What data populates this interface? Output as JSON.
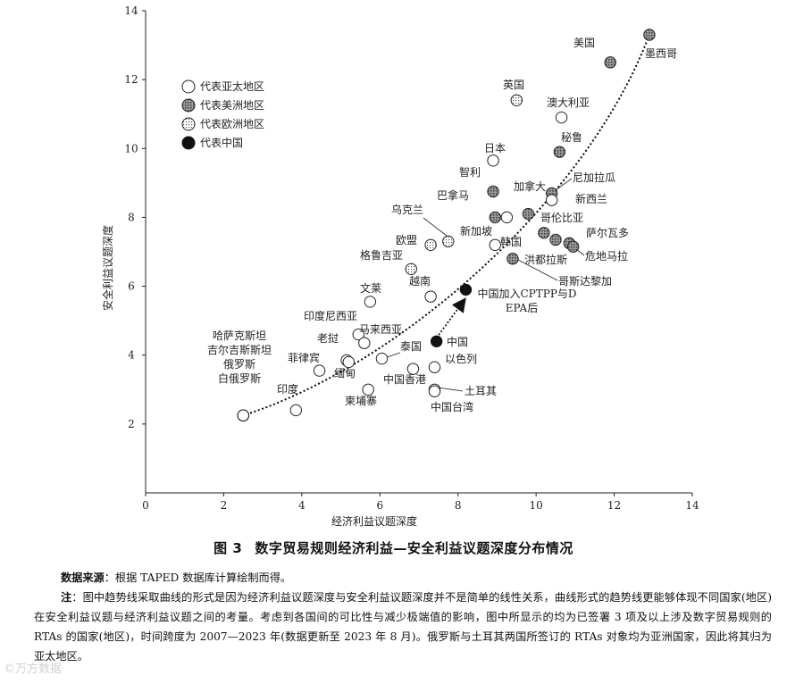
{
  "figure": {
    "number": "图 3",
    "title": "数字贸易规则经济利益—安全利益议题深度分布情况"
  },
  "notes": {
    "source_label": "数据来源",
    "source_text": "：根据 TAPED 数据库计算绘制而得。",
    "note_label": "注",
    "note_text": "：图中趋势线采取曲线的形式是因为经济利益议题深度与安全利益议题深度并不是简单的线性关系，曲线形式的趋势线更能够体现不同国家(地区)在安全利益议题与经济利益议题之间的考量。考虑到各国间的可比性与减少极端值的影响，图中所显示的均为已签署 3 项及以上涉及数字贸易规则的 RTAs 的国家(地区)，时间跨度为 2007—2023 年(数据更新至 2023 年 8 月)。俄罗斯与土耳其两国所签订的 RTAs 对象均为亚洲国家，因此将其归为亚太地区。"
  },
  "watermark": "©万方数据",
  "chart_data": {
    "type": "scatter",
    "title": "",
    "xlabel": "经济利益议题深度",
    "ylabel": "安全利益议题深度",
    "xlim": [
      0,
      14
    ],
    "ylim": [
      0,
      14
    ],
    "xticks": [
      0,
      2,
      4,
      6,
      8,
      10,
      12,
      14
    ],
    "yticks": [
      2,
      4,
      6,
      8,
      10,
      12,
      14
    ],
    "grid": false,
    "legend_position": "top-left",
    "legend": [
      {
        "key": "asia",
        "label": "代表亚太地区"
      },
      {
        "key": "americas",
        "label": "代表美洲地区"
      },
      {
        "key": "europe",
        "label": "代表欧洲地区"
      },
      {
        "key": "china",
        "label": "代表中国"
      }
    ],
    "styles": {
      "asia": {
        "fill": "#ffffff",
        "stroke": "#222222"
      },
      "americas": {
        "fill": "#6e6e6e",
        "stroke": "#222222"
      },
      "europe": {
        "fill": "#d9d9d9",
        "stroke": "#222222"
      },
      "china": {
        "fill": "#111111",
        "stroke": "#111111"
      }
    },
    "points": [
      {
        "label": "墨西哥",
        "x": 12.9,
        "y": 13.3,
        "group": "americas"
      },
      {
        "label": "美国",
        "x": 11.9,
        "y": 12.5,
        "group": "americas"
      },
      {
        "label": "英国",
        "x": 9.5,
        "y": 11.4,
        "group": "europe"
      },
      {
        "label": "澳大利亚",
        "x": 10.65,
        "y": 10.9,
        "group": "asia"
      },
      {
        "label": "秘鲁",
        "x": 10.6,
        "y": 9.9,
        "group": "americas"
      },
      {
        "label": "日本",
        "x": 8.9,
        "y": 9.65,
        "group": "asia"
      },
      {
        "label": "智利",
        "x": 8.9,
        "y": 8.75,
        "group": "americas"
      },
      {
        "label": "尼加拉瓜",
        "x": 10.4,
        "y": 8.7,
        "group": "americas"
      },
      {
        "label": "新西兰",
        "x": 10.4,
        "y": 8.5,
        "group": "asia"
      },
      {
        "label": "加拿大",
        "x": 9.8,
        "y": 8.1,
        "group": "americas"
      },
      {
        "label": "巴拿马",
        "x": 8.95,
        "y": 8.0,
        "group": "americas"
      },
      {
        "label": "新加坡",
        "x": 9.25,
        "y": 8.0,
        "group": "asia"
      },
      {
        "label": "乌克兰",
        "x": 7.75,
        "y": 7.3,
        "group": "europe"
      },
      {
        "label": "欧盟",
        "x": 7.3,
        "y": 7.2,
        "group": "europe"
      },
      {
        "label": "哥伦比亚",
        "x": 10.2,
        "y": 7.55,
        "group": "americas"
      },
      {
        "label": "萨尔瓦多",
        "x": 10.85,
        "y": 7.25,
        "group": "americas"
      },
      {
        "label": "洪都拉斯",
        "x": 10.5,
        "y": 7.35,
        "group": "americas"
      },
      {
        "label": "危地马拉",
        "x": 10.95,
        "y": 7.15,
        "group": "americas"
      },
      {
        "label": "韩国",
        "x": 8.95,
        "y": 7.2,
        "group": "asia"
      },
      {
        "label": "哥斯达黎加",
        "x": 9.4,
        "y": 6.8,
        "group": "americas"
      },
      {
        "label": "格鲁吉亚",
        "x": 6.8,
        "y": 6.5,
        "group": "europe"
      },
      {
        "label": "越南",
        "x": 7.3,
        "y": 5.7,
        "group": "asia"
      },
      {
        "label": "文莱",
        "x": 5.75,
        "y": 5.55,
        "group": "asia"
      },
      {
        "label": "中国加入CPTPP与DEPA后",
        "x": 8.2,
        "y": 5.9,
        "group": "china"
      },
      {
        "label": "印度尼西亚",
        "x": 5.45,
        "y": 4.6,
        "group": "asia"
      },
      {
        "label": "马来西亚",
        "x": 5.6,
        "y": 4.35,
        "group": "asia"
      },
      {
        "label": "中国",
        "x": 7.45,
        "y": 4.4,
        "group": "china"
      },
      {
        "label": "老挝",
        "x": 5.15,
        "y": 3.85,
        "group": "asia"
      },
      {
        "label": "泰国",
        "x": 6.05,
        "y": 3.9,
        "group": "asia"
      },
      {
        "label": "菲律宾",
        "x": 4.45,
        "y": 3.55,
        "group": "asia"
      },
      {
        "label": "缅甸",
        "x": 5.2,
        "y": 3.8,
        "group": "asia"
      },
      {
        "label": "中国香港",
        "x": 6.85,
        "y": 3.6,
        "group": "asia"
      },
      {
        "label": "以色列",
        "x": 7.4,
        "y": 3.65,
        "group": "asia"
      },
      {
        "label": "柬埔寨",
        "x": 5.7,
        "y": 3.0,
        "group": "asia"
      },
      {
        "label": "土耳其",
        "x": 7.4,
        "y": 3.0,
        "group": "asia"
      },
      {
        "label": "中国台湾",
        "x": 7.4,
        "y": 2.95,
        "group": "asia"
      },
      {
        "label": "印度",
        "x": 3.85,
        "y": 2.4,
        "group": "asia"
      },
      {
        "label": "哈萨克斯坦",
        "x": 2.5,
        "y": 2.25,
        "group": "asia"
      },
      {
        "label": "吉尔吉斯斯坦",
        "x": 2.5,
        "y": 2.25,
        "group": "asia"
      },
      {
        "label": "俄罗斯",
        "x": 2.5,
        "y": 2.25,
        "group": "asia"
      },
      {
        "label": "白俄罗斯",
        "x": 2.5,
        "y": 2.25,
        "group": "asia"
      }
    ],
    "trendline": {
      "type": "curve",
      "style": "dotted"
    },
    "arrow": {
      "from": "中国",
      "to": "中国加入CPTPP与DEPA后",
      "style": "dotted"
    }
  }
}
